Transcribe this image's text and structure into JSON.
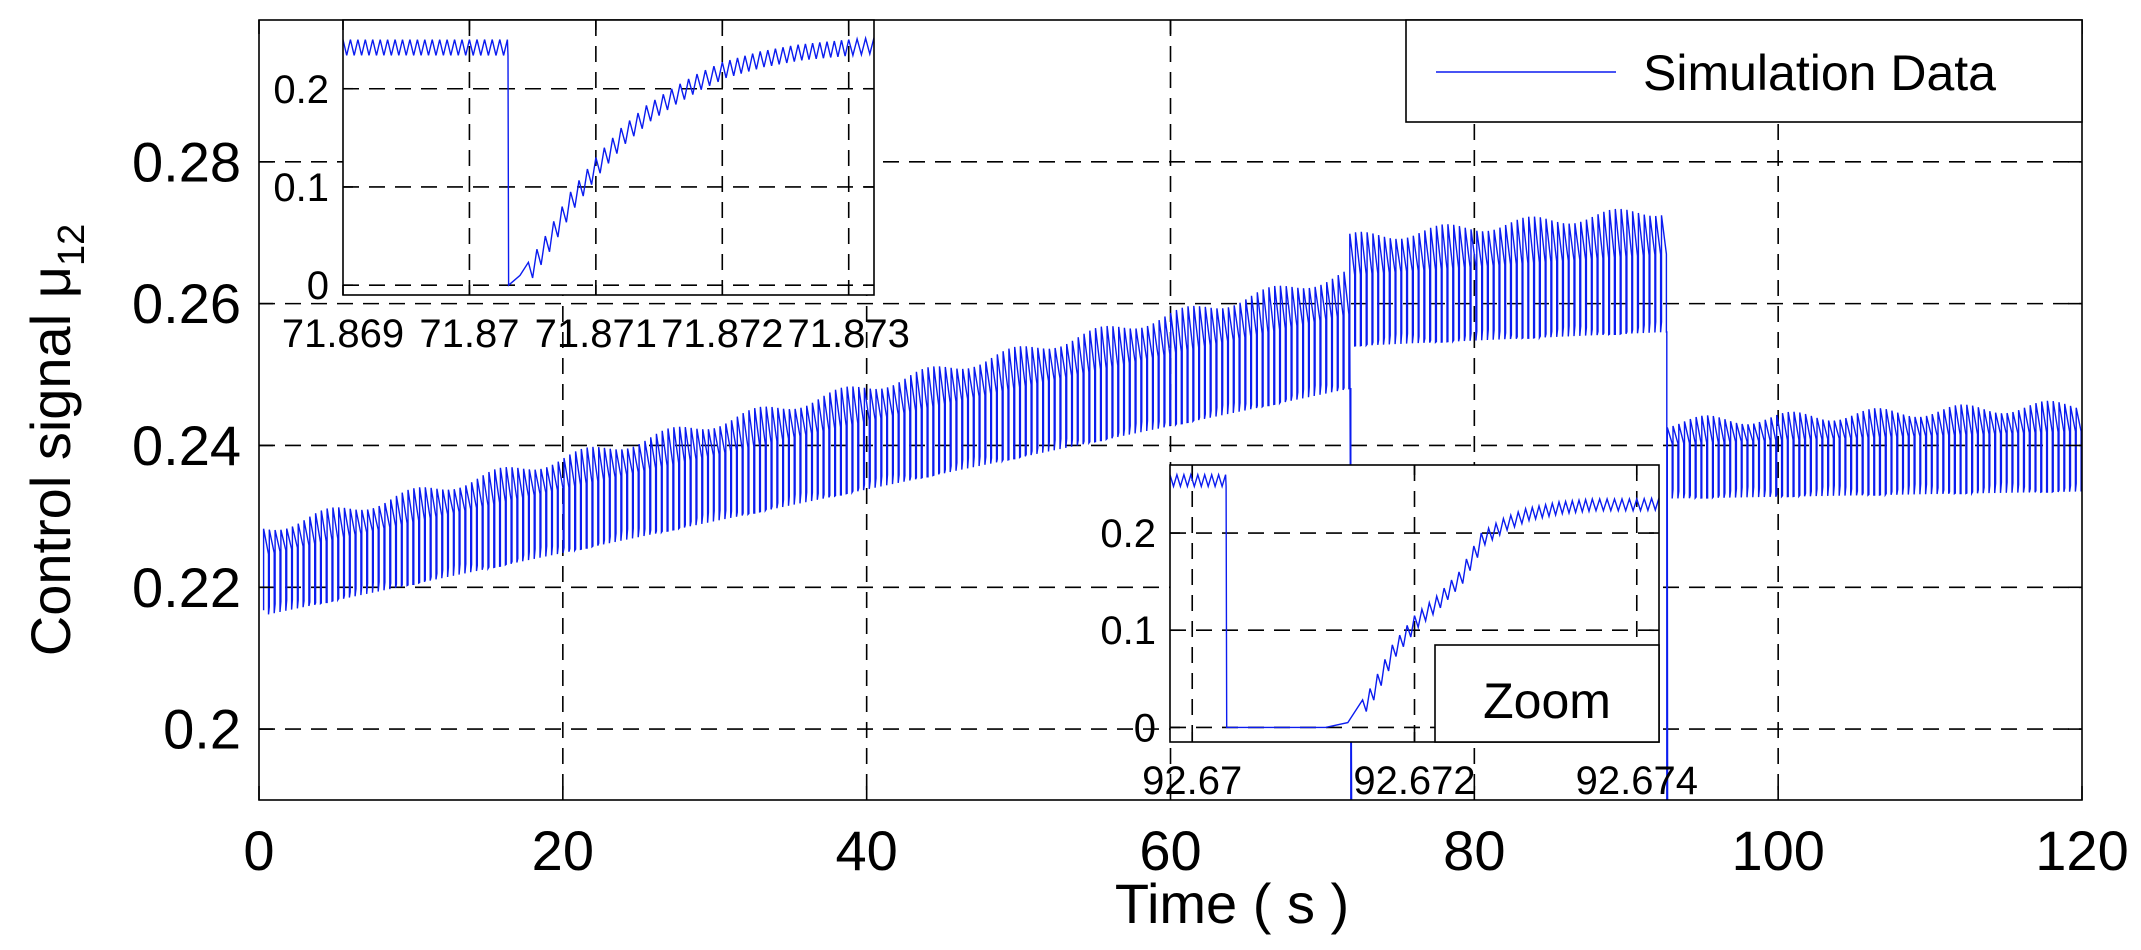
{
  "chart_data": [
    {
      "id": "main",
      "type": "line",
      "title": "",
      "xlabel": "Time ( s )",
      "ylabel": "Control signal μ",
      "ylabel_subscript": "12",
      "xlim": [
        0,
        120
      ],
      "ylim": [
        0.19,
        0.3
      ],
      "xticks": [
        0,
        20,
        40,
        60,
        80,
        100,
        120
      ],
      "xtick_labels": [
        "0",
        "20",
        "40",
        "60",
        "80",
        "100",
        "120"
      ],
      "yticks": [
        0.2,
        0.22,
        0.24,
        0.26,
        0.28
      ],
      "ytick_labels": [
        "0.2",
        "0.22",
        "0.24",
        "0.26",
        "0.28"
      ],
      "grid": true,
      "legend": {
        "position": "top-right",
        "entries": [
          "Simulation Data"
        ]
      },
      "series": [
        {
          "name": "Simulation Data",
          "color": "#0b1cf0",
          "style": "sawtooth",
          "segments": [
            {
              "x": [
                0.3,
                71.8
              ],
              "low": [
                0.216,
                0.248
              ],
              "high": [
                0.229,
                0.265
              ]
            },
            {
              "x": [
                71.8,
                92.7
              ],
              "low": [
                0.254,
                0.256
              ],
              "high": [
                0.27,
                0.274
              ]
            },
            {
              "x": [
                92.7,
                120
              ],
              "low": [
                0.2325,
                0.2335
              ],
              "high": [
                0.244,
                0.2465
              ]
            }
          ],
          "spikes": [
            {
              "x": 71.87,
              "to": 0.19
            },
            {
              "x": 92.67,
              "to": 0.19
            }
          ]
        }
      ]
    },
    {
      "id": "inset-1",
      "type": "line",
      "xlim": [
        71.869,
        71.8732
      ],
      "ylim": [
        -0.01,
        0.27
      ],
      "xticks": [
        71.869,
        71.87,
        71.871,
        71.872,
        71.873
      ],
      "xtick_labels": [
        "71.869",
        "71.87",
        "71.871",
        "71.872",
        "71.873"
      ],
      "yticks": [
        0,
        0.1,
        0.2
      ],
      "ytick_labels": [
        "0",
        "0.1",
        "0.2"
      ],
      "grid": true,
      "series": [
        {
          "name": "Simulation Data",
          "color": "#0b1cf0",
          "x": [
            71.869,
            71.87,
            71.8703,
            71.87031,
            71.8704,
            71.8706,
            71.8708,
            71.871,
            71.8712,
            71.8714,
            71.8716,
            71.8718,
            71.872,
            71.8723,
            71.8726,
            71.873,
            71.8732
          ],
          "y": [
            0.25,
            0.25,
            0.25,
            0.0,
            0.01,
            0.05,
            0.095,
            0.13,
            0.16,
            0.183,
            0.2,
            0.215,
            0.227,
            0.238,
            0.245,
            0.25,
            0.252
          ]
        }
      ]
    },
    {
      "id": "inset-2",
      "type": "line",
      "xlim": [
        92.6698,
        92.6742
      ],
      "ylim": [
        -0.015,
        0.27
      ],
      "xticks": [
        92.67,
        92.672,
        92.674
      ],
      "xtick_labels": [
        "92.67",
        "92.672",
        "92.674"
      ],
      "yticks": [
        0,
        0.1,
        0.2
      ],
      "ytick_labels": [
        "0",
        "0.1",
        "0.2"
      ],
      "grid": true,
      "annotation": "Zoom",
      "series": [
        {
          "name": "Simulation Data",
          "color": "#0b1cf0",
          "x": [
            92.6698,
            92.6703,
            92.67031,
            92.6712,
            92.6714,
            92.6716,
            92.6718,
            92.672,
            92.6722,
            92.6724,
            92.6726,
            92.6728,
            92.673,
            92.6733,
            92.6736,
            92.674,
            92.6742
          ],
          "y": [
            0.26,
            0.26,
            0.0,
            0.0,
            0.005,
            0.04,
            0.085,
            0.115,
            0.135,
            0.16,
            0.2,
            0.215,
            0.225,
            0.232,
            0.235,
            0.235,
            0.236
          ]
        }
      ]
    }
  ]
}
